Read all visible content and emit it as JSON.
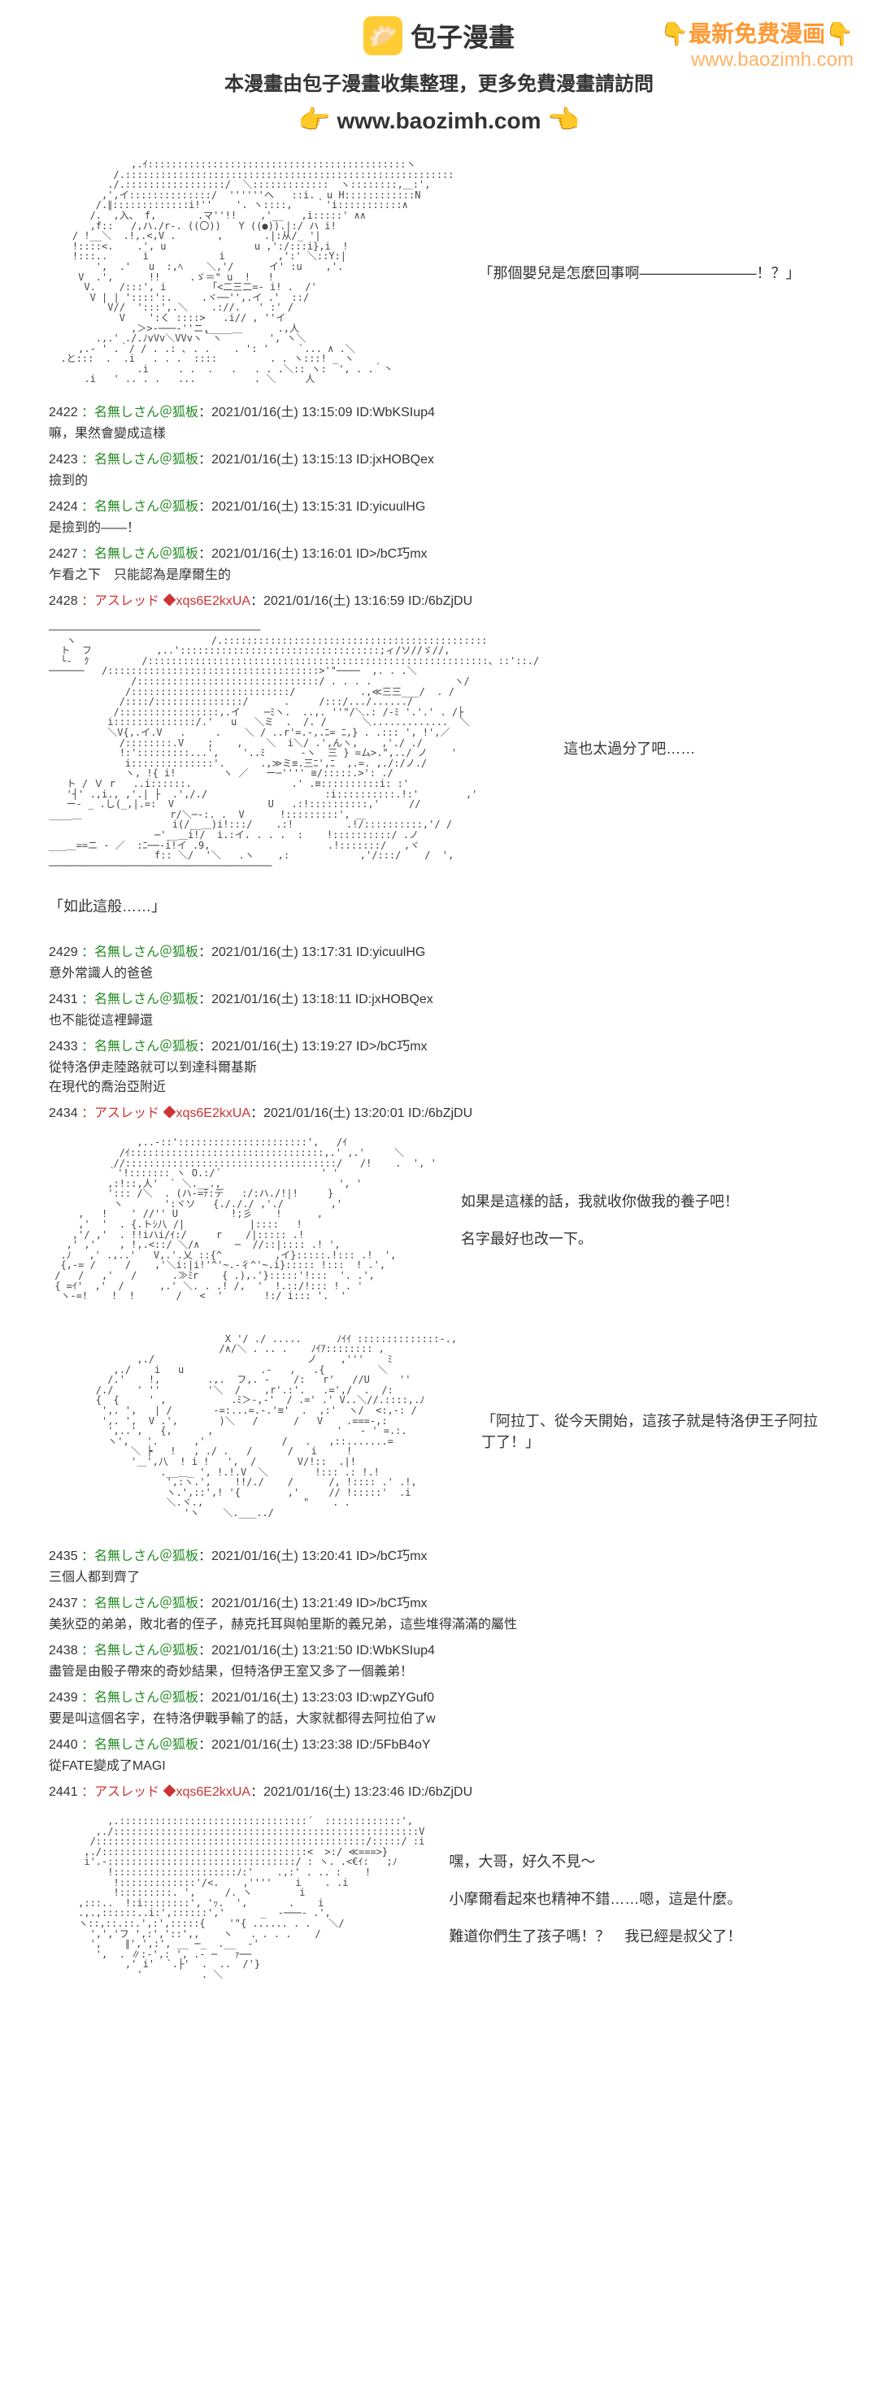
{
  "watermark": {
    "top_text": "👇最新免费漫画👇",
    "url": "www.baozimh.com"
  },
  "header": {
    "logo_emoji": "🥟",
    "logo_text": "包子漫畫",
    "subtitle": "本漫畫由包子漫畫收集整理，更多免費漫畫請訪問",
    "main_url": "www.baozimh.com"
  },
  "panels": [
    {
      "type": "ascii_dialogue",
      "dialogue": "「那個嬰兒是怎麼回事啊————————！？」"
    }
  ],
  "comments_1": [
    {
      "num": "2422",
      "name": "：名無しさん＠狐板",
      "date": "：2021/01/16(土) 13:15:09 ID:WbKSIup4",
      "body": "嘛，果然會變成這樣"
    },
    {
      "num": "2423",
      "name": "：名無しさん＠狐板",
      "date": "：2021/01/16(土) 13:15:13 ID:jxHOBQex",
      "body": "撿到的"
    },
    {
      "num": "2424",
      "name": "：名無しさん＠狐板",
      "date": "：2021/01/16(土) 13:15:31 ID:yicuulHG",
      "body": "是撿到的——！"
    },
    {
      "num": "2427",
      "name": "：名無しさん＠狐板",
      "date": "：2021/01/16(土) 13:16:01 ID>/bC巧mx",
      "body": "乍看之下　只能認為是摩爾生的"
    },
    {
      "num": "2428",
      "name_special": "：アスレッド ◆xqs6E2kxUA",
      "date": "：2021/01/16(土) 13:16:59 ID:/6bZjDU",
      "body": ""
    }
  ],
  "panel2_dialogue": "這也太過分了吧……",
  "narration_1": "「如此這般……」",
  "comments_2": [
    {
      "num": "2429",
      "name": "：名無しさん＠狐板",
      "date": "：2021/01/16(土) 13:17:31 ID:yicuulHG",
      "body": "意外常識人的爸爸"
    },
    {
      "num": "2431",
      "name": "：名無しさん＠狐板",
      "date": "：2021/01/16(土) 13:18:11 ID:jxHOBQex",
      "body": "也不能從這裡歸還"
    },
    {
      "num": "2433",
      "name": "：名無しさん＠狐板",
      "date": "：2021/01/16(土) 13:19:27 ID>/bC巧mx",
      "body": "從特洛伊走陸路就可以到達科爾基斯\n在現代的喬治亞附近"
    },
    {
      "num": "2434",
      "name_special": "：アスレッド ◆xqs6E2kxUA",
      "date": "：2021/01/16(土) 13:20:01 ID:/6bZjDU",
      "body": ""
    }
  ],
  "panel3_dialogue_1": "如果是這樣的話，我就收你做我的養子吧！",
  "panel3_dialogue_2": "名字最好也改一下。",
  "panel4_dialogue": "「阿拉丁、從今天開始，這孩子就是特洛伊王子阿拉丁了！」",
  "comments_3": [
    {
      "num": "2435",
      "name": "：名無しさん＠狐板",
      "date": "：2021/01/16(土) 13:20:41 ID>/bC巧mx",
      "body": "三個人都到齊了"
    },
    {
      "num": "2437",
      "name": "：名無しさん＠狐板",
      "date": "：2021/01/16(土) 13:21:49 ID>/bC巧mx",
      "body": "美狄亞的弟弟，敗北者的侄子，赫克托耳與帕里斯的義兄弟，這些堆得滿滿的屬性"
    },
    {
      "num": "2438",
      "name": "：名無しさん＠狐板",
      "date": "：2021/01/16(土) 13:21:50 ID:WbKSIup4",
      "body": "盡管是由骰子帶來的奇妙結果，但特洛伊王室又多了一個義弟！"
    },
    {
      "num": "2439",
      "name": "：名無しさん＠狐板",
      "date": "：2021/01/16(土) 13:23:03 ID:wpZYGuf0",
      "body": "要是叫這個名字，在特洛伊戰爭輸了的話，大家就都得去阿拉伯了w"
    },
    {
      "num": "2440",
      "name": "：名無しさん＠狐板",
      "date": "：2021/01/16(土) 13:23:38 ID:/5FbB4oY",
      "body": "從FATE變成了MAGI"
    },
    {
      "num": "2441",
      "name_special": "：アスレッド ◆xqs6E2kxUA",
      "date": "：2021/01/16(土) 13:23:46 ID:/6bZjDU",
      "body": ""
    }
  ],
  "panel5_dialogue_1": "嘿，大哥，好久不見～",
  "panel5_dialogue_2": "小摩爾看起來也精神不錯……嗯，這是什麼。",
  "panel5_dialogue_3": "難道你們生了孩子嗎！？　我已經是叔父了！"
}
